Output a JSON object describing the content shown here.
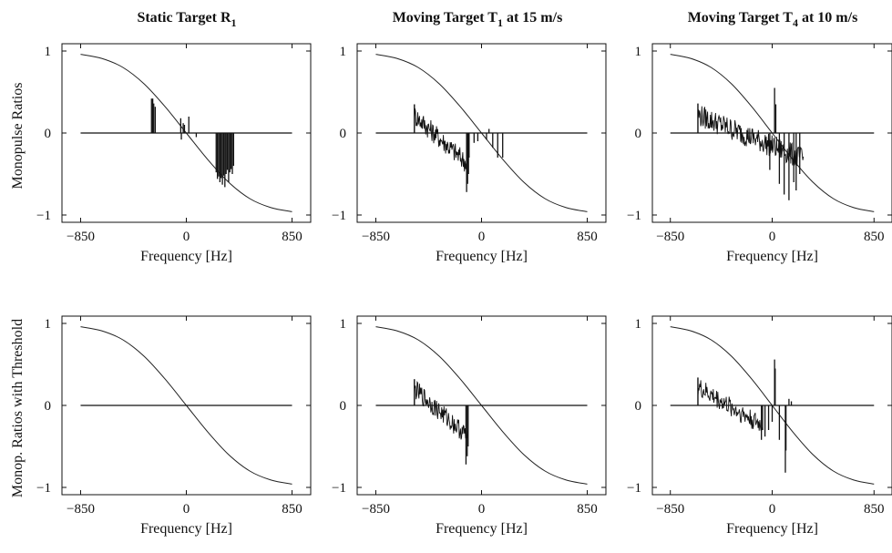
{
  "figure": {
    "row_labels": [
      "Monopulse Ratios",
      "Monop. Ratios with Threshold"
    ]
  },
  "chart_data": [
    {
      "type": "line",
      "title": "Static Target R",
      "title_subscript": "1",
      "title_suffix": "",
      "xlabel": "Frequency [Hz]",
      "ylabel": "Monopulse Ratios",
      "xlim": [
        -850,
        850
      ],
      "ylim": [
        -1,
        1
      ],
      "xticks": [
        -850,
        0,
        850
      ],
      "yticks": [
        -1,
        0,
        1
      ],
      "series": [
        {
          "kind": "curve",
          "x": [
            -850,
            -680,
            -510,
            -340,
            -170,
            0,
            170,
            340,
            510,
            680,
            850
          ],
          "y": [
            0.96,
            0.91,
            0.8,
            0.6,
            0.32,
            0.0,
            -0.32,
            -0.6,
            -0.8,
            -0.91,
            -0.96
          ]
        },
        {
          "kind": "baseline",
          "x": [
            -850,
            850
          ],
          "y": [
            0,
            0
          ]
        },
        {
          "kind": "spikes",
          "points": [
            [
              -280,
              0.42
            ],
            [
              -270,
              0.42
            ],
            [
              -262,
              0.36
            ],
            [
              -250,
              0.32
            ],
            [
              -45,
              0.18
            ],
            [
              -40,
              -0.08
            ],
            [
              -25,
              0.12
            ],
            [
              -15,
              0.1
            ],
            [
              20,
              0.2
            ],
            [
              80,
              -0.05
            ],
            [
              240,
              -0.48
            ],
            [
              250,
              -0.56
            ],
            [
              260,
              -0.53
            ],
            [
              270,
              -0.6
            ],
            [
              280,
              -0.55
            ],
            [
              290,
              -0.63
            ],
            [
              300,
              -0.52
            ],
            [
              310,
              -0.66
            ],
            [
              320,
              -0.5
            ],
            [
              330,
              -0.45
            ],
            [
              340,
              -0.6
            ],
            [
              350,
              -0.48
            ],
            [
              360,
              -0.44
            ],
            [
              370,
              -0.5
            ],
            [
              380,
              -0.4
            ]
          ]
        }
      ]
    },
    {
      "type": "line",
      "title": "Moving Target T",
      "title_subscript": "1",
      "title_suffix": " at 15 m/s",
      "xlabel": "Frequency [Hz]",
      "ylabel": "",
      "xlim": [
        -850,
        850
      ],
      "ylim": [
        -1,
        1
      ],
      "xticks": [
        -850,
        0,
        850
      ],
      "yticks": [
        -1,
        0,
        1
      ],
      "series": [
        {
          "kind": "curve",
          "x": [
            -850,
            -680,
            -510,
            -340,
            -170,
            0,
            170,
            340,
            510,
            680,
            850
          ],
          "y": [
            0.96,
            0.91,
            0.8,
            0.6,
            0.32,
            0.0,
            -0.32,
            -0.6,
            -0.8,
            -0.91,
            -0.96
          ]
        },
        {
          "kind": "baseline",
          "x": [
            -850,
            850
          ],
          "y": [
            0,
            0
          ]
        },
        {
          "kind": "noisy",
          "x_start": -540,
          "x_end": -110,
          "y_start": 0.22,
          "y_end": -0.38,
          "amp": 0.13,
          "dips": [
            [
              -120,
              -0.72
            ],
            [
              -112,
              -0.62
            ],
            [
              -105,
              -0.5
            ]
          ]
        },
        {
          "kind": "spikes",
          "points": [
            [
              -100,
              -0.3
            ],
            [
              -60,
              -0.12
            ],
            [
              -30,
              -0.1
            ],
            [
              40,
              -0.08
            ],
            [
              60,
              0.05
            ],
            [
              90,
              -0.18
            ],
            [
              130,
              -0.3
            ],
            [
              170,
              -0.3
            ]
          ]
        }
      ]
    },
    {
      "type": "line",
      "title": "Moving Target T",
      "title_subscript": "4",
      "title_suffix": " at 10 m/s",
      "xlabel": "Frequency [Hz]",
      "ylabel": "",
      "xlim": [
        -850,
        850
      ],
      "ylim": [
        -1,
        1
      ],
      "xticks": [
        -850,
        0,
        850
      ],
      "yticks": [
        -1,
        0,
        1
      ],
      "series": [
        {
          "kind": "curve",
          "x": [
            -850,
            -680,
            -510,
            -340,
            -170,
            0,
            170,
            340,
            510,
            680,
            850
          ],
          "y": [
            0.96,
            0.91,
            0.8,
            0.6,
            0.32,
            0.0,
            -0.32,
            -0.6,
            -0.8,
            -0.91,
            -0.96
          ]
        },
        {
          "kind": "baseline",
          "x": [
            -850,
            850
          ],
          "y": [
            0,
            0
          ]
        },
        {
          "kind": "noisy",
          "x_start": -620,
          "x_end": 260,
          "y_start": 0.22,
          "y_end": -0.32,
          "amp": 0.14,
          "dips": [
            [
              20,
              0.55
            ],
            [
              30,
              0.35
            ],
            [
              -20,
              -0.45
            ],
            [
              60,
              -0.62
            ],
            [
              100,
              -0.75
            ],
            [
              140,
              -0.82
            ],
            [
              180,
              -0.6
            ],
            [
              200,
              -0.7
            ],
            [
              230,
              -0.5
            ]
          ]
        }
      ]
    },
    {
      "type": "line",
      "title": "",
      "title_subscript": "",
      "title_suffix": "",
      "xlabel": "Frequency [Hz]",
      "ylabel": "Monop. Ratios with Threshold",
      "xlim": [
        -850,
        850
      ],
      "ylim": [
        -1,
        1
      ],
      "xticks": [
        -850,
        0,
        850
      ],
      "yticks": [
        -1,
        0,
        1
      ],
      "series": [
        {
          "kind": "curve",
          "x": [
            -850,
            -680,
            -510,
            -340,
            -170,
            0,
            170,
            340,
            510,
            680,
            850
          ],
          "y": [
            0.96,
            0.91,
            0.8,
            0.6,
            0.32,
            0.0,
            -0.32,
            -0.6,
            -0.8,
            -0.91,
            -0.96
          ]
        },
        {
          "kind": "baseline",
          "x": [
            -850,
            850
          ],
          "y": [
            0,
            0
          ]
        }
      ]
    },
    {
      "type": "line",
      "title": "",
      "title_subscript": "",
      "title_suffix": "",
      "xlabel": "Frequency [Hz]",
      "ylabel": "",
      "xlim": [
        -850,
        850
      ],
      "ylim": [
        -1,
        1
      ],
      "xticks": [
        -850,
        0,
        850
      ],
      "yticks": [
        -1,
        0,
        1
      ],
      "series": [
        {
          "kind": "curve",
          "x": [
            -850,
            -680,
            -510,
            -340,
            -170,
            0,
            170,
            340,
            510,
            680,
            850
          ],
          "y": [
            0.96,
            0.91,
            0.8,
            0.6,
            0.32,
            0.0,
            -0.32,
            -0.6,
            -0.8,
            -0.91,
            -0.96
          ]
        },
        {
          "kind": "baseline",
          "x": [
            -850,
            850
          ],
          "y": [
            0,
            0
          ]
        },
        {
          "kind": "noisy",
          "x_start": -540,
          "x_end": -110,
          "y_start": 0.2,
          "y_end": -0.38,
          "amp": 0.12,
          "dips": [
            [
              -125,
              -0.72
            ],
            [
              -115,
              -0.62
            ],
            [
              -108,
              -0.5
            ]
          ]
        }
      ]
    },
    {
      "type": "line",
      "title": "",
      "title_subscript": "",
      "title_suffix": "",
      "xlabel": "Frequency [Hz]",
      "ylabel": "",
      "xlim": [
        -850,
        850
      ],
      "ylim": [
        -1,
        1
      ],
      "xticks": [
        -850,
        0,
        850
      ],
      "yticks": [
        -1,
        0,
        1
      ],
      "series": [
        {
          "kind": "curve",
          "x": [
            -850,
            -680,
            -510,
            -340,
            -170,
            0,
            170,
            340,
            510,
            680,
            850
          ],
          "y": [
            0.96,
            0.91,
            0.8,
            0.6,
            0.32,
            0.0,
            -0.32,
            -0.6,
            -0.8,
            -0.91,
            -0.96
          ]
        },
        {
          "kind": "baseline",
          "x": [
            -850,
            850
          ],
          "y": [
            0,
            0
          ]
        },
        {
          "kind": "noisy",
          "x_start": -620,
          "x_end": -80,
          "y_start": 0.22,
          "y_end": -0.25,
          "amp": 0.12,
          "dips": [
            [
              -90,
              -0.42
            ],
            [
              -80,
              -0.3
            ]
          ]
        },
        {
          "kind": "spikes",
          "points": [
            [
              -60,
              -0.38
            ],
            [
              -30,
              -0.3
            ],
            [
              0,
              -0.2
            ],
            [
              20,
              0.56
            ],
            [
              25,
              0.45
            ],
            [
              60,
              -0.42
            ],
            [
              110,
              -0.82
            ],
            [
              115,
              -0.55
            ],
            [
              140,
              0.08
            ],
            [
              160,
              0.05
            ]
          ]
        }
      ]
    }
  ]
}
